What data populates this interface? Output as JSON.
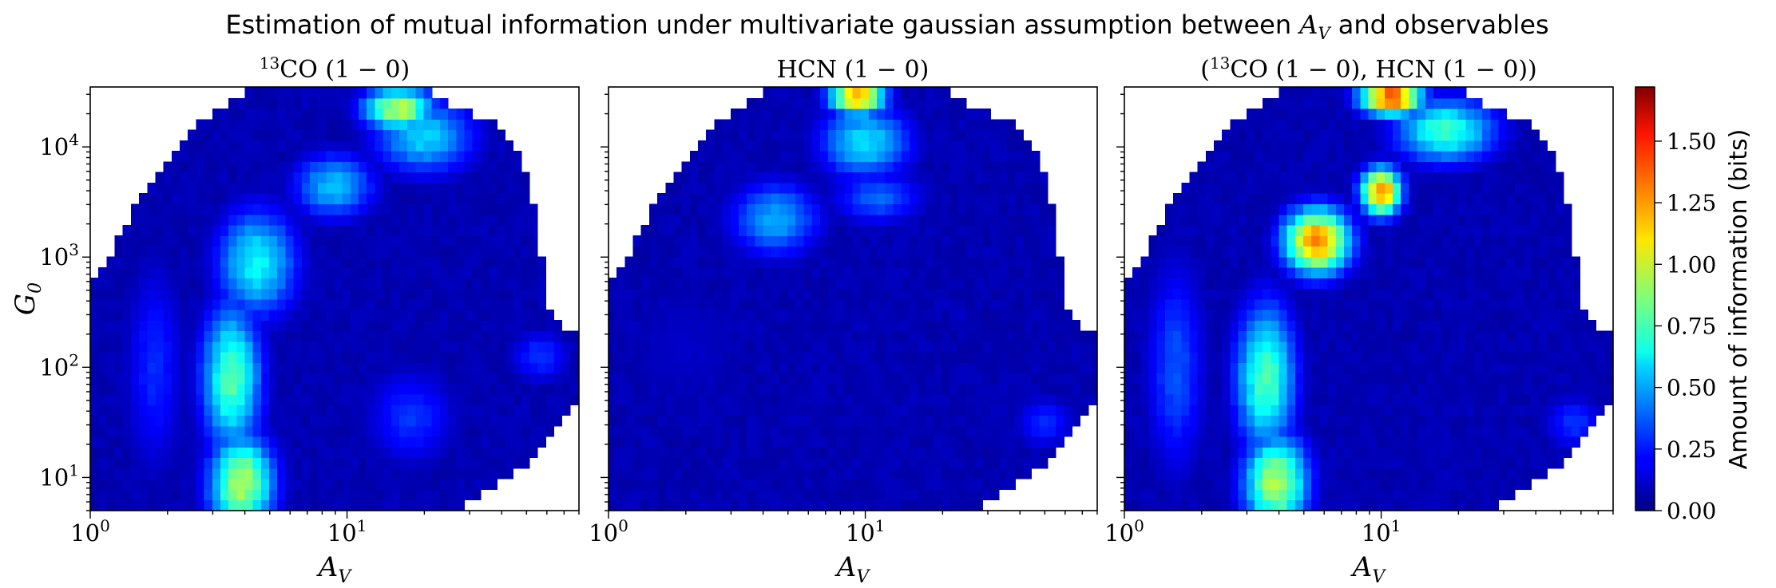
{
  "figure": {
    "title": "Estimation of mutual information under multivariate gaussian assumption between A_V and observables",
    "title_parts": {
      "before": "Estimation of mutual information under multivariate gaussian assumption between ",
      "var": "A",
      "var_sub": "V",
      "after": " and observables"
    }
  },
  "panels": [
    {
      "id": "co13",
      "title": "13CO (1 − 0)",
      "show_ylabel": true
    },
    {
      "id": "hcn",
      "title": "HCN (1 − 0)",
      "show_ylabel": false
    },
    {
      "id": "combined",
      "title": "(13CO (1 − 0), HCN (1 − 0))",
      "show_ylabel": false
    }
  ],
  "axes": {
    "xlabel": "A_V",
    "ylabel": "G_0",
    "x_ticks": [
      {
        "value": 1,
        "label": "10^0"
      },
      {
        "value": 10,
        "label": "10^1"
      }
    ],
    "y_ticks": [
      {
        "value": 10,
        "label": "10^1"
      },
      {
        "value": 100,
        "label": "10^2"
      },
      {
        "value": 1000,
        "label": "10^3"
      },
      {
        "value": 10000,
        "label": "10^4"
      }
    ]
  },
  "colorbar": {
    "label": "Amount of information (bits)",
    "ticks": [
      "0.00",
      "0.25",
      "0.50",
      "0.75",
      "1.00",
      "1.25",
      "1.50"
    ]
  },
  "chart_data": [
    {
      "type": "heatmap",
      "title": "13CO (1 − 0)",
      "xlabel": "A_V",
      "ylabel": "G_0",
      "x_scale": "log",
      "y_scale": "log",
      "xlim": [
        1,
        80
      ],
      "ylim": [
        5,
        35000
      ],
      "colormap": "jet",
      "vmin": 0,
      "vmax": 1.72,
      "grid": false,
      "bin_edges": {
        "log10_av": [
          0,
          1.9,
          60
        ],
        "log10_g0": [
          0.7,
          4.54,
          40
        ]
      },
      "valid_region_upper_log10_g0": [
        [
          0.0,
          2.7
        ],
        [
          0.09,
          3.1
        ],
        [
          0.19,
          3.5
        ],
        [
          0.29,
          3.85
        ],
        [
          0.38,
          4.1
        ],
        [
          0.48,
          4.33
        ],
        [
          0.58,
          4.47
        ],
        [
          0.65,
          4.54
        ],
        [
          1.3,
          4.54
        ],
        [
          1.35,
          4.42
        ],
        [
          1.45,
          4.35
        ],
        [
          1.6,
          4.2
        ],
        [
          1.63,
          4.05
        ],
        [
          1.68,
          3.95
        ],
        [
          1.75,
          3.2
        ],
        [
          1.78,
          2.6
        ],
        [
          1.83,
          2.4
        ],
        [
          1.9,
          2.3
        ]
      ],
      "valid_region_lower_log10_g0": [
        [
          0.0,
          0.7
        ],
        [
          1.4,
          0.7
        ],
        [
          1.5,
          0.8
        ],
        [
          1.6,
          0.95
        ],
        [
          1.75,
          1.2
        ],
        [
          1.85,
          1.6
        ],
        [
          1.9,
          1.75
        ]
      ],
      "features": [
        {
          "log10_av": 0.59,
          "log10_g0": 0.95,
          "value": 0.95,
          "log10_av_width": 0.13,
          "log10_g0_width": 0.45
        },
        {
          "log10_av": 0.55,
          "log10_g0": 1.9,
          "value": 0.78,
          "log10_av_width": 0.12,
          "log10_g0_width": 0.7
        },
        {
          "log10_av": 0.65,
          "log10_g0": 2.95,
          "value": 0.65,
          "log10_av_width": 0.16,
          "log10_g0_width": 0.5
        },
        {
          "log10_av": 0.95,
          "log10_g0": 3.65,
          "value": 0.55,
          "log10_av_width": 0.16,
          "log10_g0_width": 0.3
        },
        {
          "log10_av": 1.2,
          "log10_g0": 4.35,
          "value": 0.98,
          "log10_av_width": 0.14,
          "log10_g0_width": 0.2
        },
        {
          "log10_av": 1.3,
          "log10_g0": 4.1,
          "value": 0.58,
          "log10_av_width": 0.2,
          "log10_g0_width": 0.35
        },
        {
          "log10_av": 0.25,
          "log10_g0": 2.0,
          "value": 0.28,
          "log10_av_width": 0.12,
          "log10_g0_width": 1.0
        },
        {
          "log10_av": 1.25,
          "log10_g0": 1.55,
          "value": 0.3,
          "log10_av_width": 0.18,
          "log10_g0_width": 0.45
        },
        {
          "log10_av": 1.75,
          "log10_g0": 2.1,
          "value": 0.3,
          "log10_av_width": 0.12,
          "log10_g0_width": 0.25
        },
        {
          "log10_av": 1.55,
          "log10_g0": 3.1,
          "value": 0.05,
          "log10_av_width": 0.25,
          "log10_g0_width": 0.5
        }
      ]
    },
    {
      "type": "heatmap",
      "title": "HCN (1 − 0)",
      "xlabel": "A_V",
      "ylabel": "G_0",
      "x_scale": "log",
      "y_scale": "log",
      "xlim": [
        1,
        80
      ],
      "ylim": [
        5,
        35000
      ],
      "colormap": "jet",
      "vmin": 0,
      "vmax": 1.72,
      "grid": false,
      "bin_edges": {
        "log10_av": [
          0,
          1.9,
          60
        ],
        "log10_g0": [
          0.7,
          4.54,
          40
        ]
      },
      "valid_region_upper_log10_g0": [
        [
          0.0,
          2.7
        ],
        [
          0.09,
          3.1
        ],
        [
          0.19,
          3.5
        ],
        [
          0.29,
          3.85
        ],
        [
          0.38,
          4.1
        ],
        [
          0.48,
          4.33
        ],
        [
          0.58,
          4.47
        ],
        [
          0.65,
          4.54
        ],
        [
          1.3,
          4.54
        ],
        [
          1.35,
          4.42
        ],
        [
          1.45,
          4.35
        ],
        [
          1.6,
          4.2
        ],
        [
          1.63,
          4.05
        ],
        [
          1.68,
          3.95
        ],
        [
          1.75,
          3.2
        ],
        [
          1.78,
          2.6
        ],
        [
          1.83,
          2.4
        ],
        [
          1.9,
          2.3
        ]
      ],
      "valid_region_lower_log10_g0": [
        [
          0.0,
          0.7
        ],
        [
          1.4,
          0.7
        ],
        [
          1.5,
          0.8
        ],
        [
          1.6,
          0.95
        ],
        [
          1.75,
          1.2
        ],
        [
          1.85,
          1.6
        ],
        [
          1.9,
          1.75
        ]
      ],
      "features": [
        {
          "log10_av": 0.97,
          "log10_g0": 4.45,
          "value": 1.22,
          "log10_av_width": 0.11,
          "log10_g0_width": 0.16
        },
        {
          "log10_av": 1.0,
          "log10_g0": 4.05,
          "value": 0.6,
          "log10_av_width": 0.18,
          "log10_g0_width": 0.35
        },
        {
          "log10_av": 0.65,
          "log10_g0": 3.35,
          "value": 0.5,
          "log10_av_width": 0.18,
          "log10_g0_width": 0.35
        },
        {
          "log10_av": 1.05,
          "log10_g0": 3.55,
          "value": 0.38,
          "log10_av_width": 0.18,
          "log10_g0_width": 0.25
        },
        {
          "log10_av": 1.7,
          "log10_g0": 1.5,
          "value": 0.28,
          "log10_av_width": 0.12,
          "log10_g0_width": 0.25
        },
        {
          "log10_av": 1.8,
          "log10_g0": 4.0,
          "value": 0.3,
          "log10_av_width": 0.06,
          "log10_g0_width": 0.12
        },
        {
          "log10_av": 0.3,
          "log10_g0": 2.2,
          "value": 0.12,
          "log10_av_width": 0.3,
          "log10_g0_width": 0.8
        }
      ]
    },
    {
      "type": "heatmap",
      "title": "(13CO (1 − 0), HCN (1 − 0))",
      "xlabel": "A_V",
      "ylabel": "G_0",
      "x_scale": "log",
      "y_scale": "log",
      "xlim": [
        1,
        80
      ],
      "ylim": [
        5,
        35000
      ],
      "colormap": "jet",
      "vmin": 0,
      "vmax": 1.72,
      "grid": false,
      "bin_edges": {
        "log10_av": [
          0,
          1.9,
          60
        ],
        "log10_g0": [
          0.7,
          4.54,
          40
        ]
      },
      "valid_region_upper_log10_g0": [
        [
          0.0,
          2.7
        ],
        [
          0.09,
          3.1
        ],
        [
          0.19,
          3.5
        ],
        [
          0.29,
          3.85
        ],
        [
          0.38,
          4.1
        ],
        [
          0.48,
          4.33
        ],
        [
          0.58,
          4.47
        ],
        [
          0.65,
          4.54
        ],
        [
          1.3,
          4.54
        ],
        [
          1.35,
          4.42
        ],
        [
          1.45,
          4.35
        ],
        [
          1.6,
          4.2
        ],
        [
          1.63,
          4.05
        ],
        [
          1.68,
          3.95
        ],
        [
          1.75,
          3.2
        ],
        [
          1.78,
          2.6
        ],
        [
          1.83,
          2.4
        ],
        [
          1.9,
          2.3
        ]
      ],
      "valid_region_lower_log10_g0": [
        [
          0.0,
          0.7
        ],
        [
          1.4,
          0.7
        ],
        [
          1.5,
          0.8
        ],
        [
          1.6,
          0.95
        ],
        [
          1.75,
          1.2
        ],
        [
          1.85,
          1.6
        ],
        [
          1.9,
          1.75
        ]
      ],
      "features": [
        {
          "log10_av": 0.59,
          "log10_g0": 0.95,
          "value": 0.95,
          "log10_av_width": 0.13,
          "log10_g0_width": 0.45
        },
        {
          "log10_av": 0.55,
          "log10_g0": 1.9,
          "value": 0.78,
          "log10_av_width": 0.12,
          "log10_g0_width": 0.7
        },
        {
          "log10_av": 0.75,
          "log10_g0": 3.15,
          "value": 1.3,
          "log10_av_width": 0.13,
          "log10_g0_width": 0.3
        },
        {
          "log10_av": 1.0,
          "log10_g0": 3.6,
          "value": 1.3,
          "log10_av_width": 0.08,
          "log10_g0_width": 0.22
        },
        {
          "log10_av": 1.04,
          "log10_g0": 4.45,
          "value": 1.45,
          "log10_av_width": 0.12,
          "log10_g0_width": 0.16
        },
        {
          "log10_av": 1.25,
          "log10_g0": 4.15,
          "value": 0.75,
          "log10_av_width": 0.2,
          "log10_g0_width": 0.3
        },
        {
          "log10_av": 0.2,
          "log10_g0": 2.0,
          "value": 0.35,
          "log10_av_width": 0.12,
          "log10_g0_width": 1.0
        },
        {
          "log10_av": 1.75,
          "log10_g0": 1.5,
          "value": 0.3,
          "log10_av_width": 0.12,
          "log10_g0_width": 0.25
        },
        {
          "log10_av": 1.55,
          "log10_g0": 3.1,
          "value": 0.05,
          "log10_av_width": 0.25,
          "log10_g0_width": 0.5
        }
      ]
    }
  ]
}
